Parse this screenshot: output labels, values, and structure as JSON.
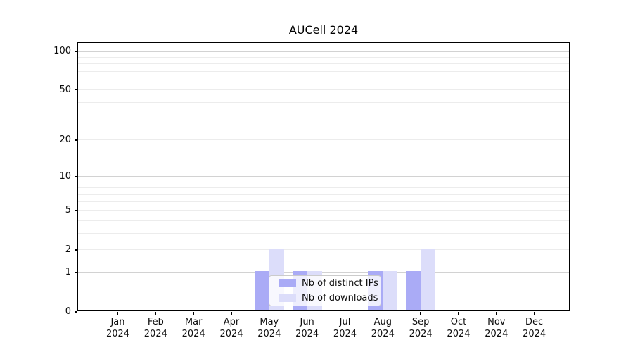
{
  "chart_data": {
    "type": "bar",
    "title": "AUCell 2024",
    "months": [
      "Jan",
      "Feb",
      "Mar",
      "Apr",
      "May",
      "Jun",
      "Jul",
      "Aug",
      "Sep",
      "Oct",
      "Nov",
      "Dec"
    ],
    "year_label": "2024",
    "series": [
      {
        "name": "Nb of distinct IPs",
        "color": "#aaabf6",
        "values": [
          0,
          0,
          0,
          0,
          1,
          1,
          0,
          1,
          1,
          0,
          0,
          0
        ]
      },
      {
        "name": "Nb of downloads",
        "color": "#dcddfa",
        "values": [
          0,
          0,
          0,
          0,
          2,
          1,
          0,
          1,
          2,
          0,
          0,
          0
        ]
      }
    ],
    "yscale": "log1p",
    "ylim": [
      0,
      100
    ],
    "yticks": [
      0,
      1,
      2,
      5,
      10,
      20,
      50,
      100
    ],
    "grid_major": [
      1,
      10,
      100
    ],
    "grid_minor": [
      2,
      3,
      4,
      5,
      6,
      7,
      8,
      9,
      20,
      30,
      40,
      50,
      60,
      70,
      80,
      90
    ],
    "grid": "on",
    "legend_position": "lower center",
    "xlabel": "",
    "ylabel": ""
  },
  "style": {
    "bar_color_distinct_ips": "#aaabf6",
    "bar_color_downloads": "#dcddfa",
    "grid_major_color": "#d2d2d2",
    "grid_minor_color": "#ececec",
    "axis_color": "#000000",
    "text_color": "#0d0d0d",
    "legend_border_color": "#cbcbcb",
    "background_color": "#ffffff"
  }
}
